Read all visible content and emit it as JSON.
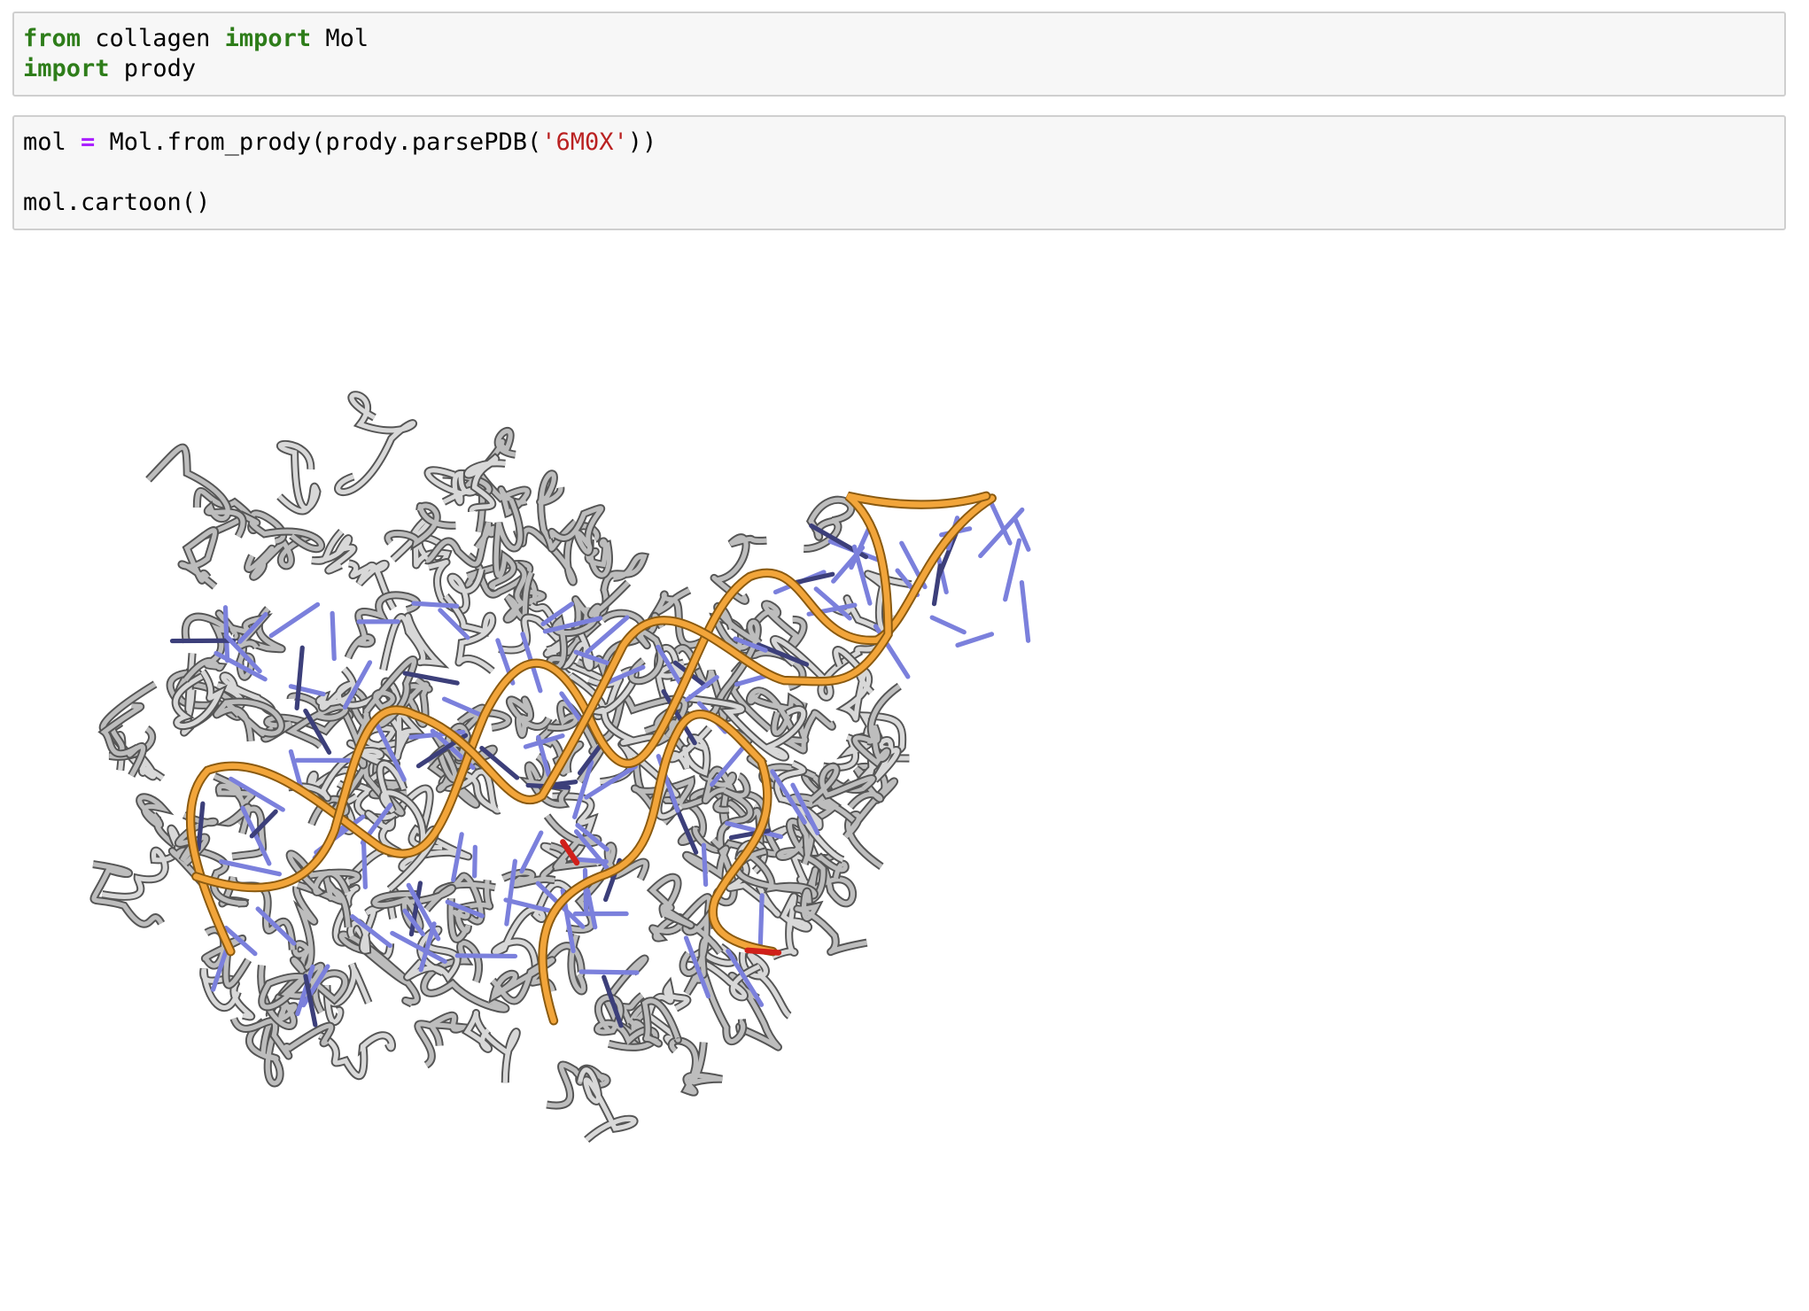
{
  "cells": [
    {
      "lines": [
        [
          {
            "text": "from",
            "kind": "keyword"
          },
          {
            "text": " collagen ",
            "kind": "plain"
          },
          {
            "text": "import",
            "kind": "keyword"
          },
          {
            "text": " Mol",
            "kind": "plain"
          }
        ],
        [
          {
            "text": "import",
            "kind": "keyword"
          },
          {
            "text": " prody",
            "kind": "plain"
          }
        ]
      ]
    },
    {
      "lines": [
        [
          {
            "text": "mol ",
            "kind": "plain"
          },
          {
            "text": "=",
            "kind": "operator"
          },
          {
            "text": " Mol.from_prody(prody.parsePDB(",
            "kind": "plain"
          },
          {
            "text": "'6M0X'",
            "kind": "string"
          },
          {
            "text": "))",
            "kind": "plain"
          }
        ],
        [],
        [
          {
            "text": "mol.cartoon()",
            "kind": "plain"
          }
        ]
      ]
    }
  ]
}
